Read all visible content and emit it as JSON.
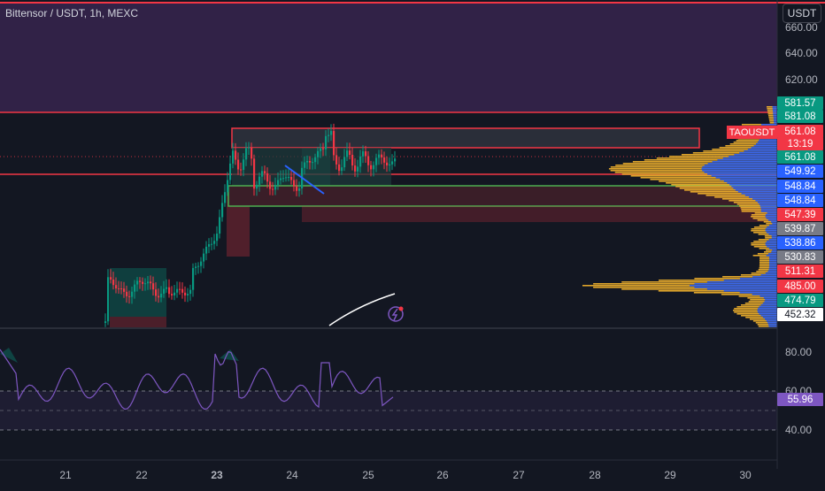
{
  "header": {
    "title": "Bittensor / USDT, 1h, MEXC",
    "currency_button": "USDT"
  },
  "symbol_tag": "TAOUSDT",
  "price_axis": {
    "ticks": [
      "660.00",
      "640.00",
      "620.00"
    ]
  },
  "price_tags": [
    {
      "label": "581.57",
      "color": "#089981"
    },
    {
      "label": "581.08",
      "color": "#089981"
    },
    {
      "label": "561.08",
      "color": "#f23645"
    },
    {
      "label": "13:19",
      "color": "#f23645"
    },
    {
      "label": "561.08",
      "color": "#089981"
    },
    {
      "label": "549.92",
      "color": "#2962ff"
    },
    {
      "label": "548.84",
      "color": "#2962ff"
    },
    {
      "label": "548.84",
      "color": "#2962ff"
    },
    {
      "label": "547.39",
      "color": "#f23645"
    },
    {
      "label": "539.87",
      "color": "#787b86"
    },
    {
      "label": "538.86",
      "color": "#2962ff"
    },
    {
      "label": "530.83",
      "color": "#787b86"
    },
    {
      "label": "511.31",
      "color": "#f23645"
    },
    {
      "label": "485.00",
      "color": "#f23645"
    },
    {
      "label": "474.79",
      "color": "#089981"
    },
    {
      "label": "452.32",
      "color": "#ffffff"
    }
  ],
  "rsi": {
    "ticks": [
      "80.00",
      "60.00",
      "40.00"
    ],
    "value": "55.96",
    "value_color": "#7e57c2"
  },
  "time_axis": [
    "21",
    "22",
    "23",
    "24",
    "25",
    "26",
    "27",
    "28",
    "29",
    "30"
  ],
  "colors": {
    "up": "#089981",
    "down": "#f23645",
    "rsi_line": "#7e57c2",
    "volume_profile_blue": "#2962ff",
    "volume_profile_yellow": "#f7b62c"
  }
}
